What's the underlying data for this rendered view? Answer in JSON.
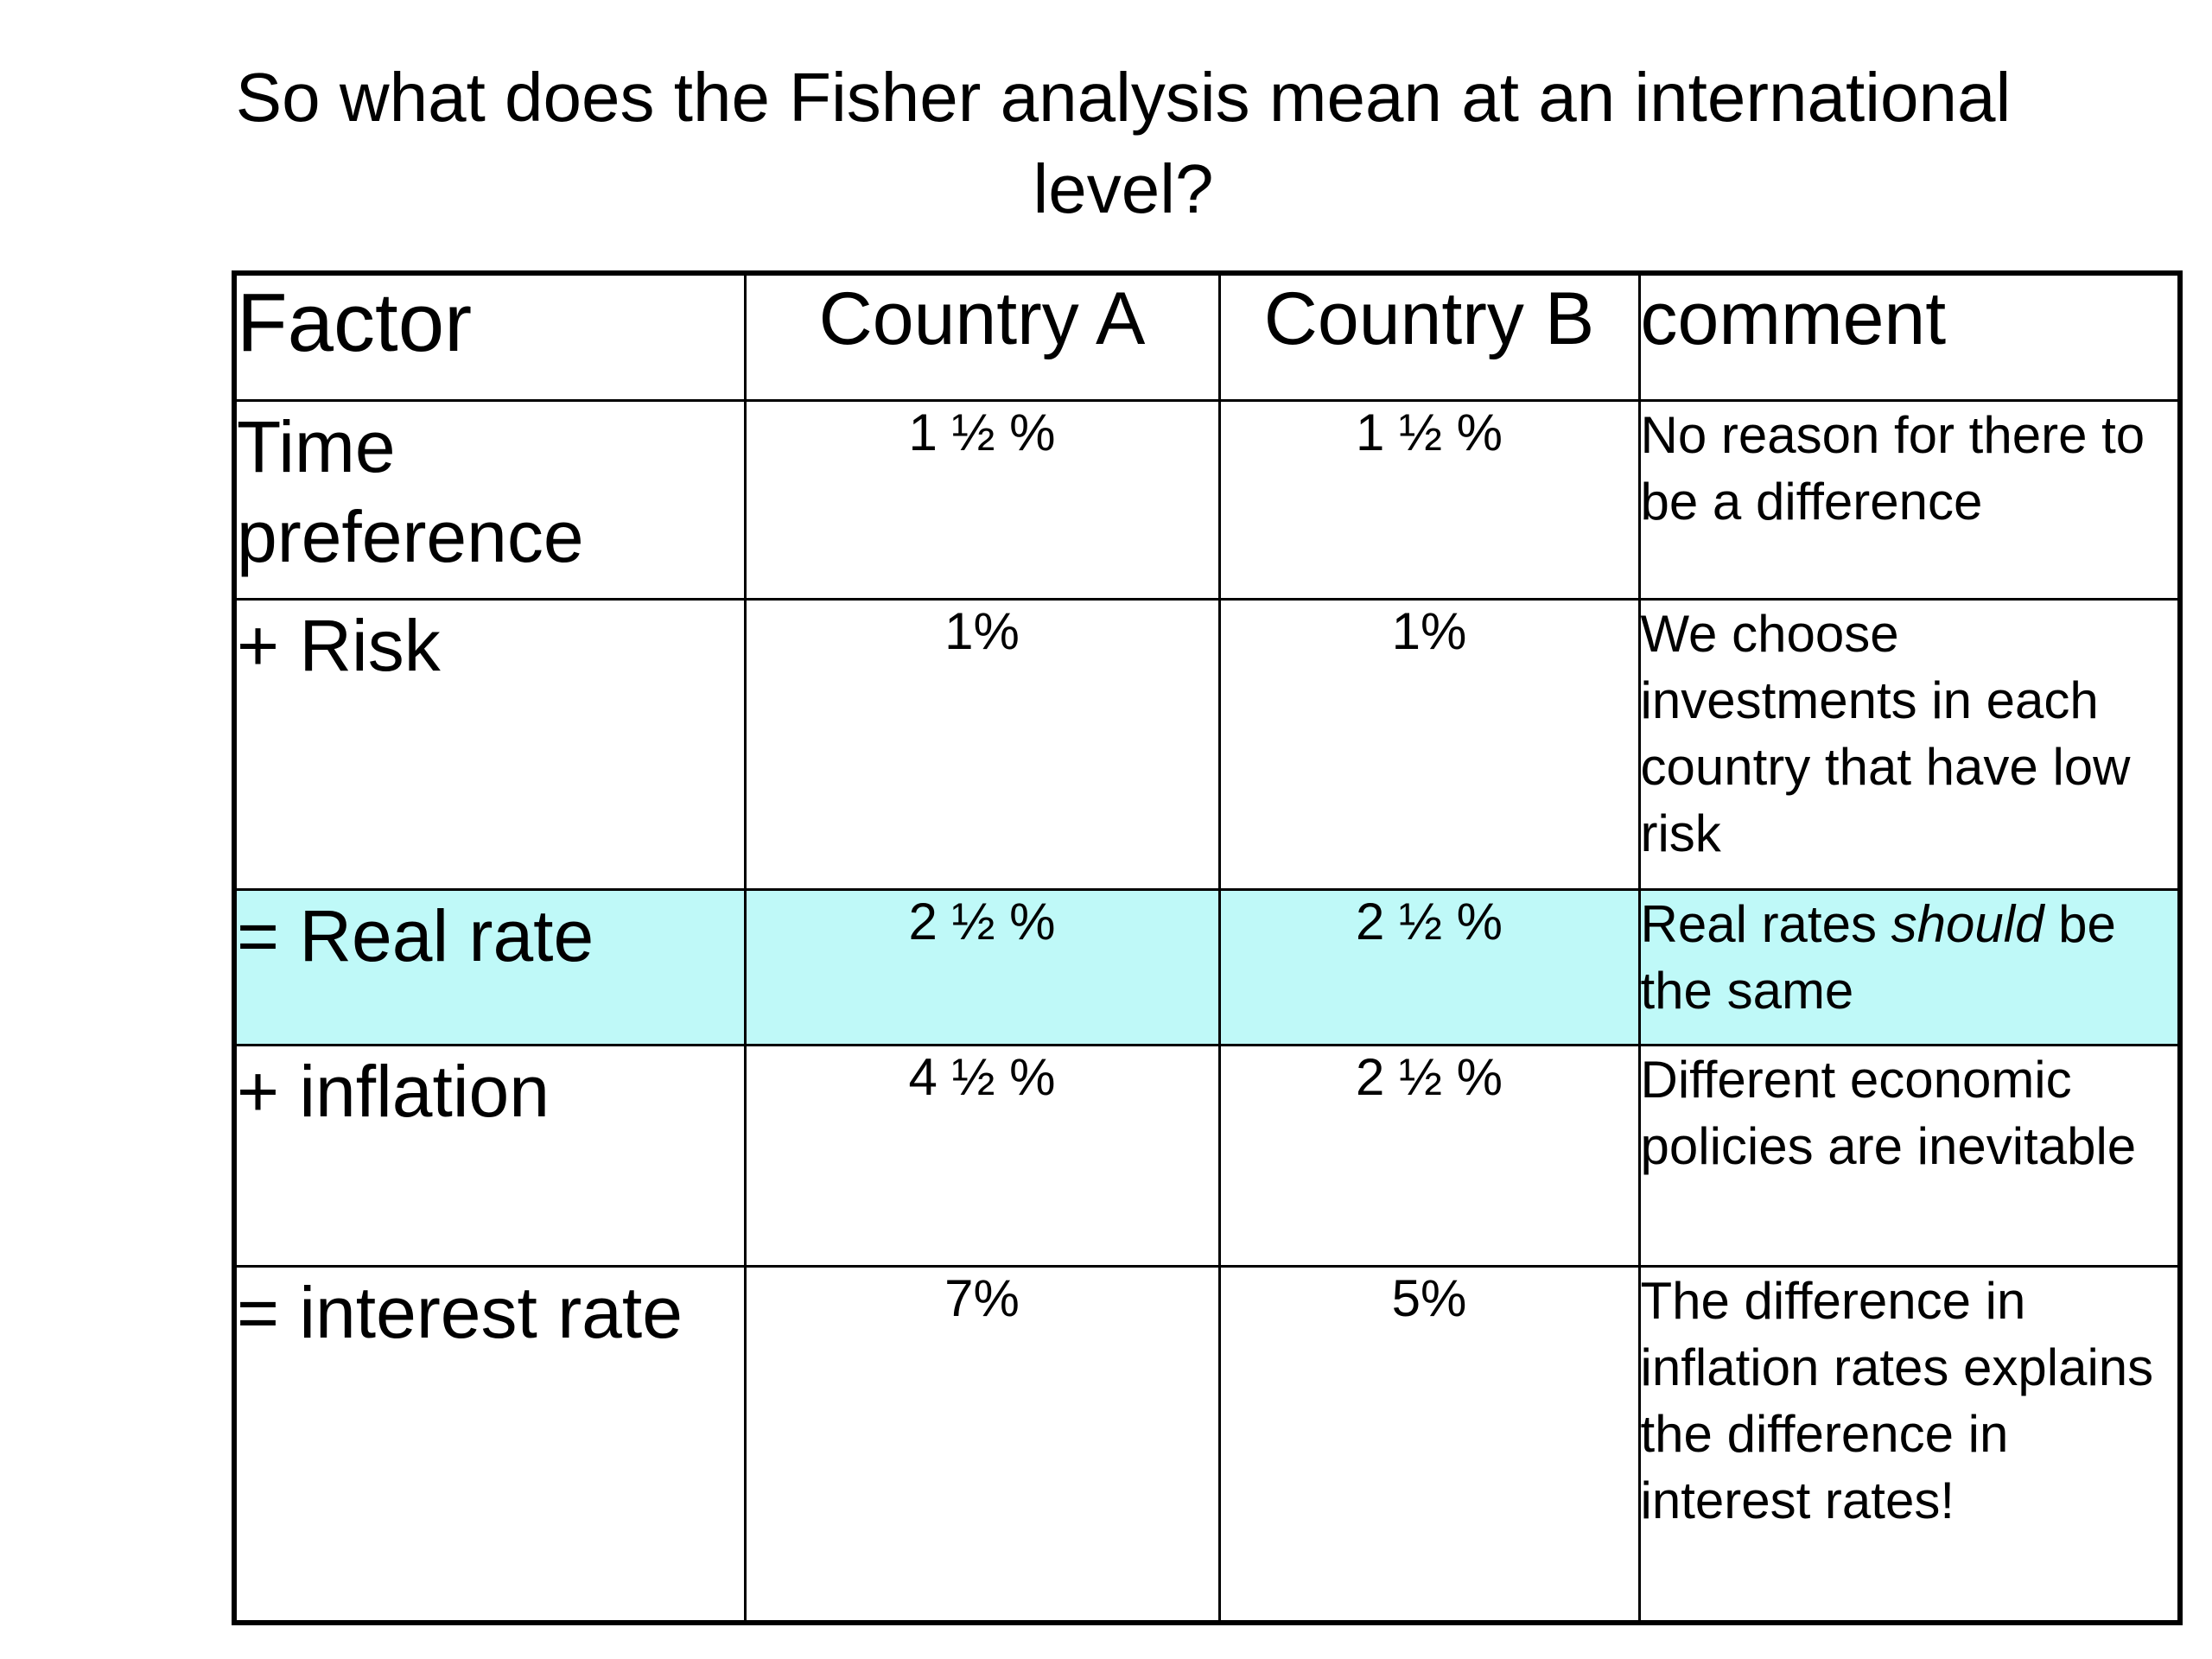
{
  "slide": {
    "title": "So what does the Fisher analysis mean at an international level?",
    "highlight_color": "#bff9f8"
  },
  "table": {
    "headers": {
      "factor": "Factor",
      "country_a": "Country A",
      "country_b": "Country B",
      "comment": "comment"
    },
    "rows": [
      {
        "factor": "Time preference",
        "country_a": "1 ½ %",
        "country_b": "1 ½ %",
        "comment": "No reason for there to be a difference"
      },
      {
        "factor": "+ Risk",
        "country_a": "1%",
        "country_b": "1%",
        "comment": "We choose investments in each country that have low risk"
      },
      {
        "factor": "= Real rate",
        "country_a": "2 ½ %",
        "country_b": "2 ½ %",
        "comment_before": "Real rates ",
        "comment_emphasis": "should",
        "comment_after": " be the same"
      },
      {
        "factor": "+ inflation",
        "country_a": "4 ½ %",
        "country_b": "2 ½ %",
        "comment": "Different economic policies are inevitable"
      },
      {
        "factor": "= interest rate",
        "country_a": "7%",
        "country_b": "5%",
        "comment": "The difference in inflation rates explains the difference in interest rates!"
      }
    ]
  }
}
